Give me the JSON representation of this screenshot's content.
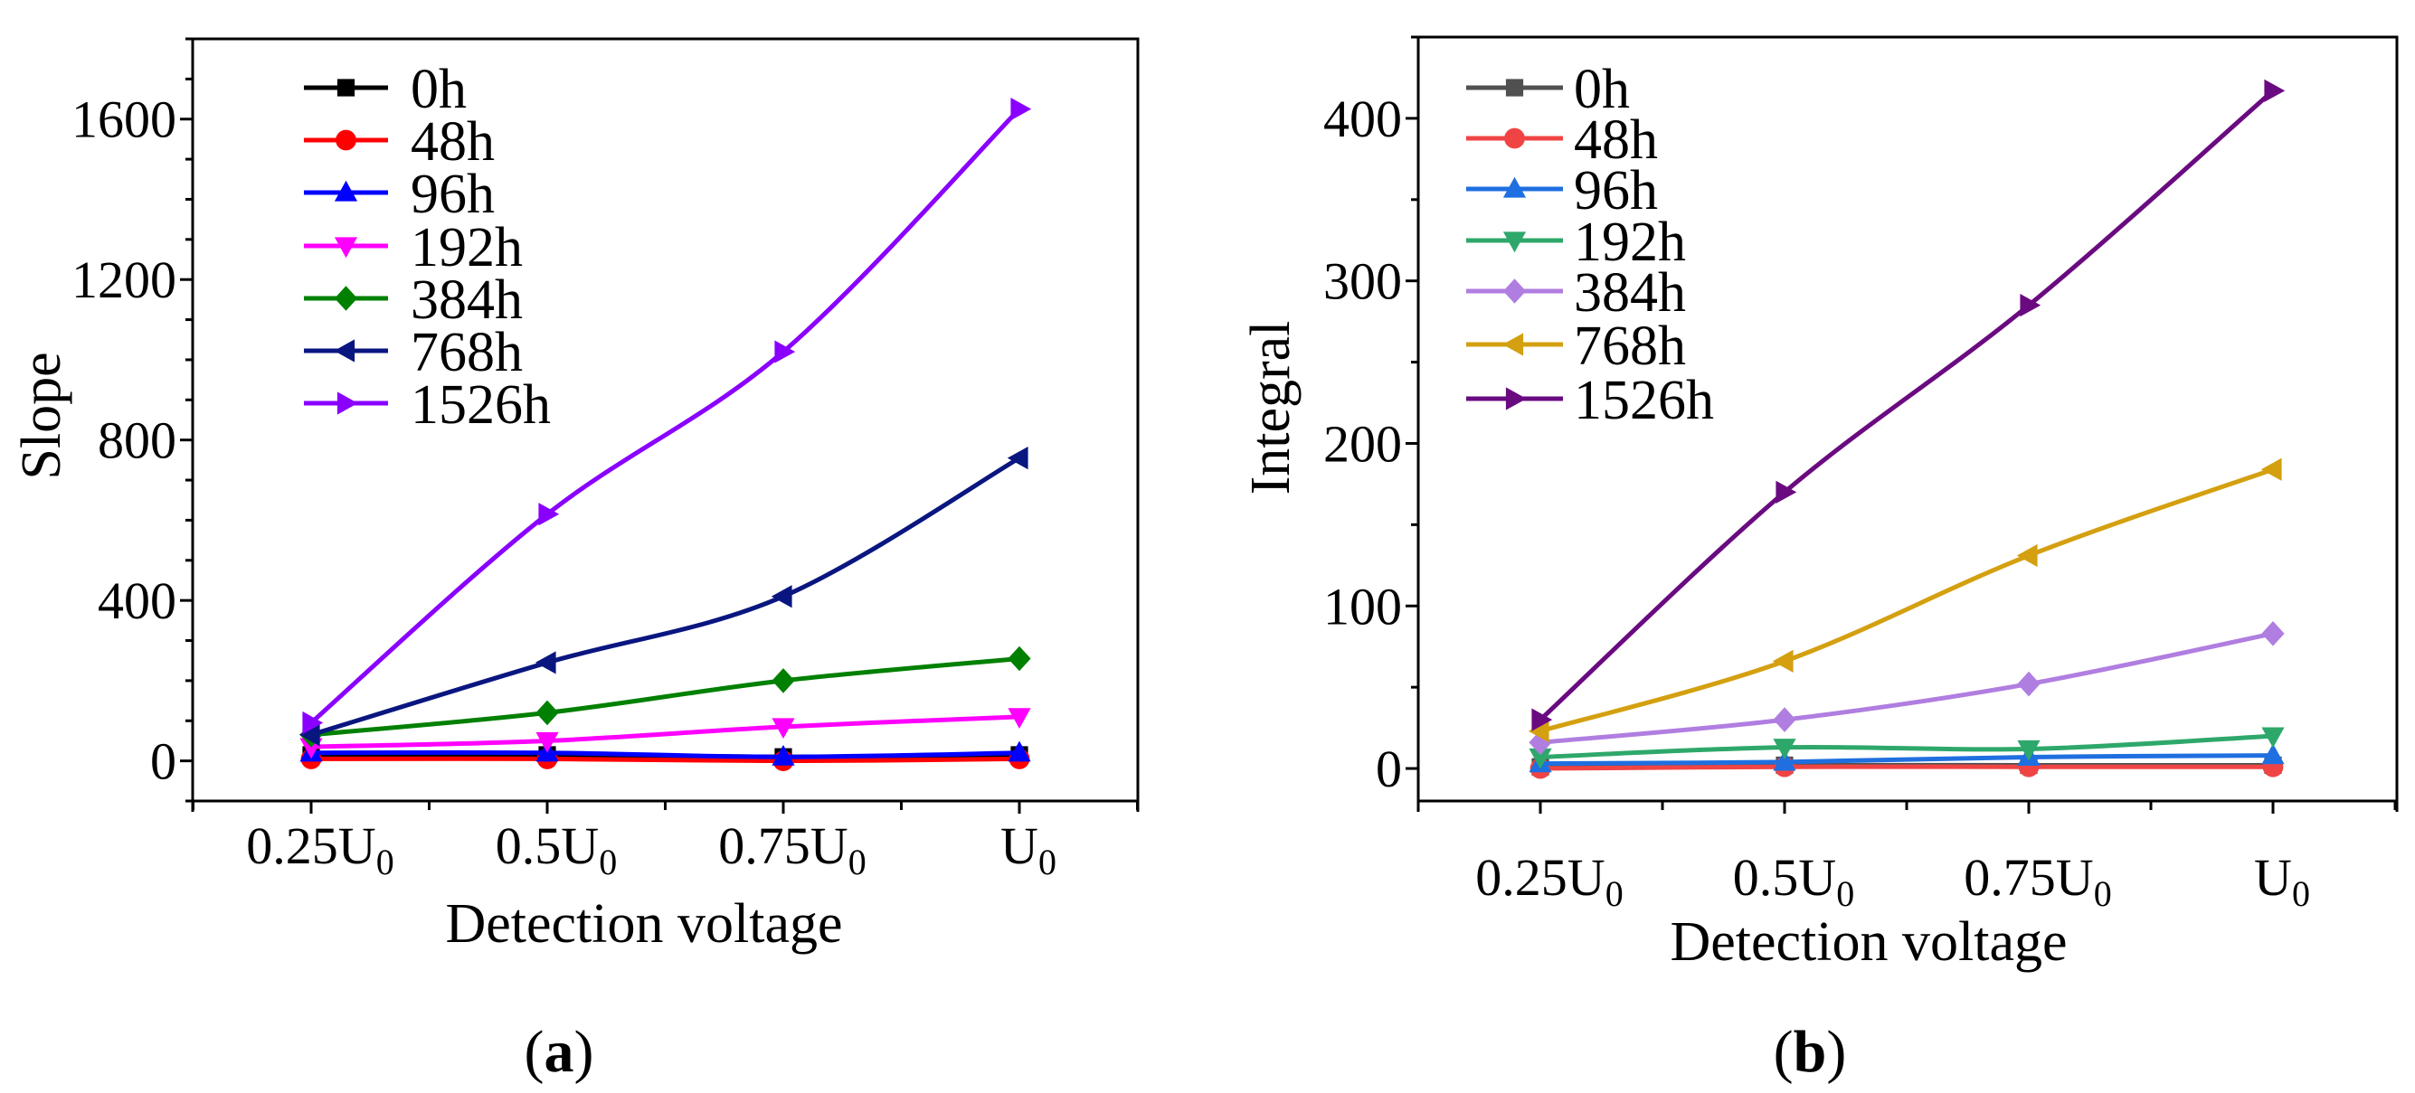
{
  "chart_data": [
    {
      "id": "a",
      "type": "line",
      "caption_open": "(",
      "caption_letter": "a",
      "caption_close": ")",
      "xlabel": "Detection voltage",
      "ylabel": "Slope",
      "categories": [
        {
          "main": "0.25U",
          "sub": "0"
        },
        {
          "main": "0.5U",
          "sub": "0"
        },
        {
          "main": "0.75U",
          "sub": "0"
        },
        {
          "main": "U",
          "sub": "0"
        }
      ],
      "ylim": [
        -100,
        1800
      ],
      "yticks": [
        0,
        400,
        800,
        1200,
        1600
      ],
      "yminor_step": 100,
      "legend_position": "top-left",
      "series": [
        {
          "name": "0h",
          "color": "#000000",
          "marker": "square",
          "values": [
            15,
            15,
            10,
            15
          ]
        },
        {
          "name": "48h",
          "color": "#ff0000",
          "marker": "circle",
          "values": [
            5,
            5,
            0,
            5
          ]
        },
        {
          "name": "96h",
          "color": "#0000ff",
          "marker": "triangle-up",
          "values": [
            20,
            20,
            10,
            20
          ]
        },
        {
          "name": "192h",
          "color": "#ff00ff",
          "marker": "triangle-down",
          "values": [
            35,
            50,
            85,
            110
          ]
        },
        {
          "name": "384h",
          "color": "#008000",
          "marker": "diamond",
          "values": [
            65,
            120,
            200,
            255
          ]
        },
        {
          "name": "768h",
          "color": "#0a1680",
          "marker": "triangle-left",
          "values": [
            65,
            245,
            410,
            755
          ]
        },
        {
          "name": "1526h",
          "color": "#8a00ff",
          "marker": "triangle-right",
          "values": [
            95,
            615,
            1020,
            1625
          ]
        }
      ]
    },
    {
      "id": "b",
      "type": "line",
      "caption_open": "(",
      "caption_letter": "b",
      "caption_close": ")",
      "xlabel": "Detection voltage",
      "ylabel": "Integral",
      "categories": [
        {
          "main": "0.25U",
          "sub": "0"
        },
        {
          "main": "0.5U",
          "sub": "0"
        },
        {
          "main": "0.75U",
          "sub": "0"
        },
        {
          "main": "U",
          "sub": "0"
        }
      ],
      "ylim": [
        -20,
        450
      ],
      "yticks": [
        0,
        100,
        200,
        300,
        400
      ],
      "yminor_step": 50,
      "legend_position": "top-left",
      "series": [
        {
          "name": "0h",
          "color": "#505050",
          "marker": "square",
          "values": [
            1,
            2,
            2,
            2
          ]
        },
        {
          "name": "48h",
          "color": "#f04444",
          "marker": "circle",
          "values": [
            0,
            1,
            1,
            1
          ]
        },
        {
          "name": "96h",
          "color": "#1f6fe0",
          "marker": "triangle-up",
          "values": [
            3,
            4,
            7,
            8
          ]
        },
        {
          "name": "192h",
          "color": "#2ea86a",
          "marker": "triangle-down",
          "values": [
            7,
            13,
            12,
            20
          ]
        },
        {
          "name": "384h",
          "color": "#b07ee0",
          "marker": "diamond",
          "values": [
            16,
            30,
            52,
            83
          ]
        },
        {
          "name": "768h",
          "color": "#d4a010",
          "marker": "triangle-left",
          "values": [
            23,
            66,
            131,
            184
          ]
        },
        {
          "name": "1526h",
          "color": "#6a0a80",
          "marker": "triangle-right",
          "values": [
            30,
            170,
            285,
            417
          ]
        }
      ]
    }
  ]
}
